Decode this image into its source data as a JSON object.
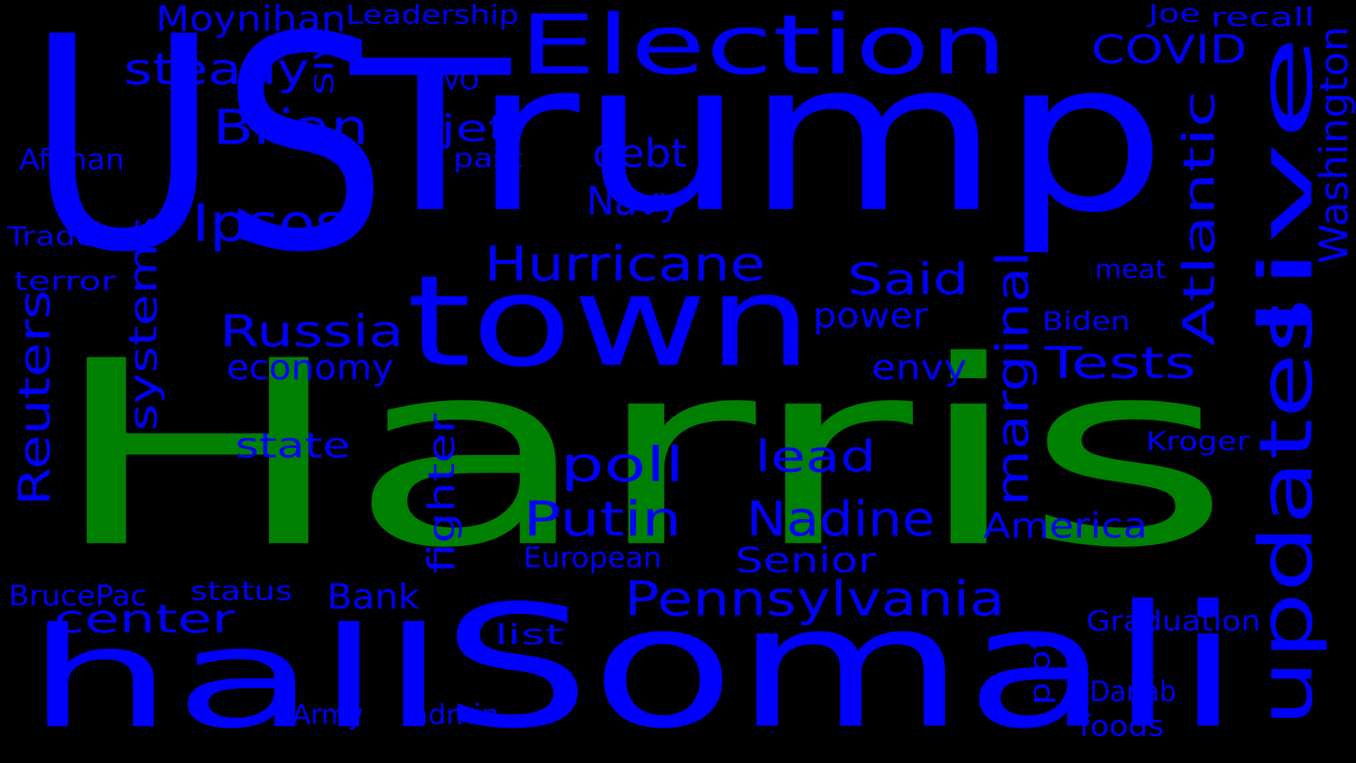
{
  "colors": {
    "background": "#000000",
    "primary": "#0000FF",
    "highlight": "#008000"
  },
  "words": [
    {
      "text": "Harris",
      "color": "highlight"
    },
    {
      "text": "Trump",
      "color": "primary"
    },
    {
      "text": "US",
      "color": "primary"
    },
    {
      "text": "Somali",
      "color": "primary"
    },
    {
      "text": "town",
      "color": "primary"
    },
    {
      "text": "hall",
      "color": "primary"
    },
    {
      "text": "live",
      "color": "primary"
    },
    {
      "text": "updates",
      "color": "primary"
    },
    {
      "text": "Election",
      "color": "primary"
    },
    {
      "text": "Pennsylvania",
      "color": "primary"
    },
    {
      "text": "Hurricane",
      "color": "primary"
    },
    {
      "text": "Ipsos",
      "color": "primary"
    },
    {
      "text": "Brian",
      "color": "primary"
    },
    {
      "text": "steady",
      "color": "primary"
    },
    {
      "text": "Moynihan",
      "color": "primary"
    },
    {
      "text": "Leadership",
      "color": "primary"
    },
    {
      "text": "SIV",
      "color": "primary"
    },
    {
      "text": "VO",
      "color": "primary"
    },
    {
      "text": "jet",
      "color": "primary"
    },
    {
      "text": "past",
      "color": "primary"
    },
    {
      "text": "debt",
      "color": "primary"
    },
    {
      "text": "Navy",
      "color": "primary"
    },
    {
      "text": "COVID",
      "color": "primary"
    },
    {
      "text": "Joe",
      "color": "primary"
    },
    {
      "text": "recall",
      "color": "primary"
    },
    {
      "text": "Washington",
      "color": "primary"
    },
    {
      "text": "Atlantic",
      "color": "primary"
    },
    {
      "text": "meat",
      "color": "primary"
    },
    {
      "text": "Biden",
      "color": "primary"
    },
    {
      "text": "Tests",
      "color": "primary"
    },
    {
      "text": "Said",
      "color": "primary"
    },
    {
      "text": "marginal",
      "color": "primary"
    },
    {
      "text": "power",
      "color": "primary"
    },
    {
      "text": "envy",
      "color": "primary"
    },
    {
      "text": "Afghan",
      "color": "primary"
    },
    {
      "text": "Trader",
      "color": "primary"
    },
    {
      "text": "terror",
      "color": "primary"
    },
    {
      "text": "Reuters",
      "color": "primary"
    },
    {
      "text": "systems",
      "color": "primary"
    },
    {
      "text": "Russia",
      "color": "primary"
    },
    {
      "text": "economy",
      "color": "primary"
    },
    {
      "text": "state",
      "color": "primary"
    },
    {
      "text": "fighter",
      "color": "primary"
    },
    {
      "text": "poll",
      "color": "primary"
    },
    {
      "text": "lead",
      "color": "primary"
    },
    {
      "text": "Putin",
      "color": "primary"
    },
    {
      "text": "Nadine",
      "color": "primary"
    },
    {
      "text": "America",
      "color": "primary"
    },
    {
      "text": "Kroger",
      "color": "primary"
    },
    {
      "text": "European",
      "color": "primary"
    },
    {
      "text": "Senior",
      "color": "primary"
    },
    {
      "text": "BrucePac",
      "color": "primary"
    },
    {
      "text": "status",
      "color": "primary"
    },
    {
      "text": "Bank",
      "color": "primary"
    },
    {
      "text": "center",
      "color": "primary"
    },
    {
      "text": "list",
      "color": "primary"
    },
    {
      "text": "Graduation",
      "color": "primary"
    },
    {
      "text": "plot",
      "color": "primary"
    },
    {
      "text": "Danab",
      "color": "primary"
    },
    {
      "text": "foods",
      "color": "primary"
    },
    {
      "text": "Army",
      "color": "primary"
    },
    {
      "text": "admin",
      "color": "primary"
    }
  ]
}
